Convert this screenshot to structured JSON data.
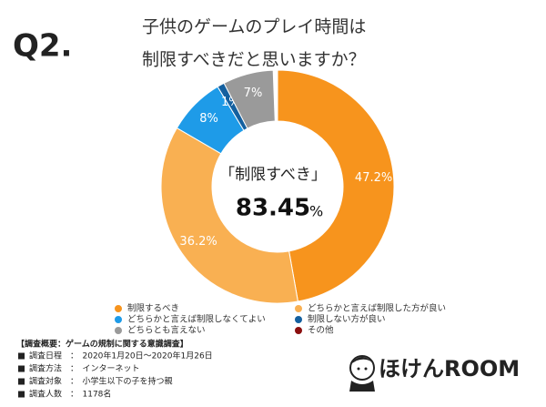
{
  "chart_data": {
    "type": "donut",
    "heading": "Q2.",
    "title_lines": [
      "子供のゲームのプレイ時間は",
      "制限すべきだと思いますか？"
    ],
    "center_label": "「制限すべき」",
    "center_value": "83.45",
    "center_unit": "%",
    "series": [
      {
        "name": "制限するべき",
        "color": "#f7941d",
        "value": 47.2,
        "value_label": "47.2%"
      },
      {
        "name": "どちらかと言えば制限した方が良い",
        "color": "#f9b052",
        "value": 36.2,
        "value_label": "36.2%"
      },
      {
        "name": "どちらかと言えば制限しなくてよい",
        "color": "#1e9be8",
        "value": 8,
        "value_label": "8%"
      },
      {
        "name": "制限しない方が良い",
        "color": "#14609f",
        "value": 1,
        "value_label": "1%"
      },
      {
        "name": "どちらとも言えない",
        "color": "#9a9a9a",
        "value": 7,
        "value_label": "7%"
      },
      {
        "name": "その他",
        "color": "#8b0f0f",
        "value": null,
        "value_label": null
      }
    ],
    "survey": {
      "header": "【調査概要：ゲームの規制に関する意識調査】",
      "rows": [
        "調査日程　：　2020年1月20日～2020年1月26日",
        "調査方法　：　インターネット",
        "調査対象　：　小学生以下の子を持つ親",
        "調査人数　：　1178名"
      ]
    },
    "logo": "ほけんROOM"
  }
}
